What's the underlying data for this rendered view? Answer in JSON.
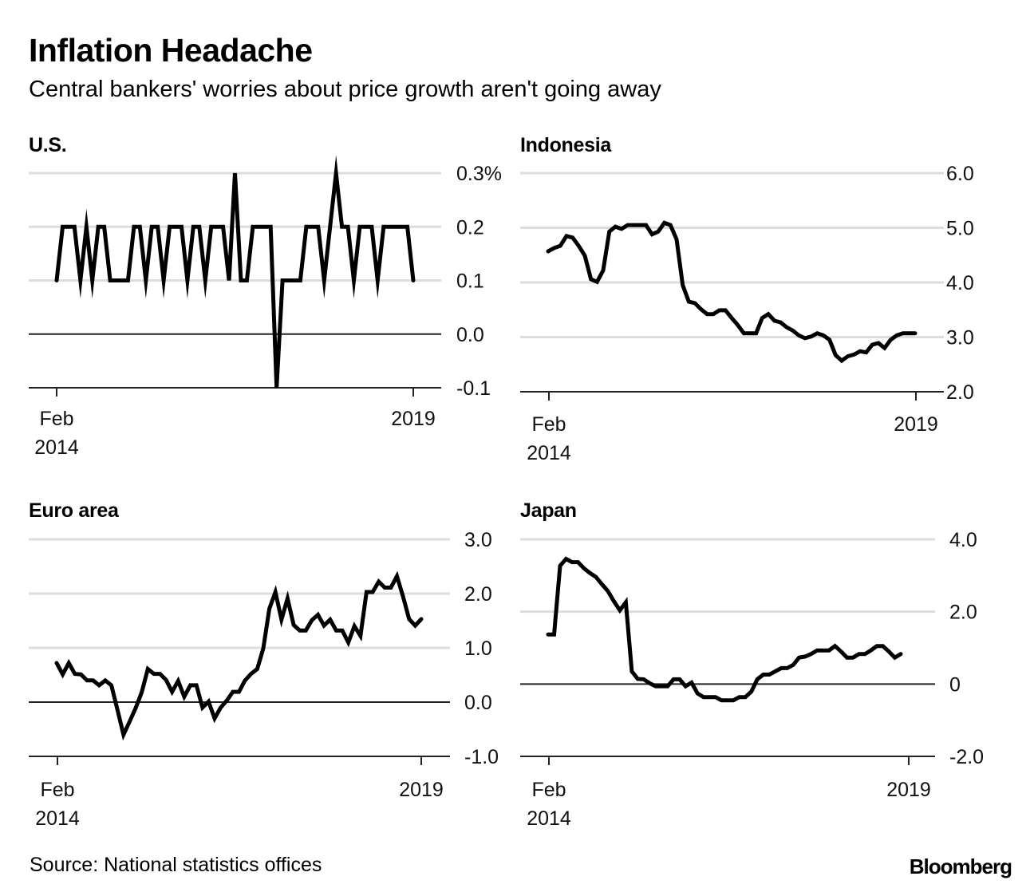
{
  "header": {
    "title": "Inflation Headache",
    "subtitle": "Central bankers' worries about price growth aren't going away"
  },
  "footer": {
    "source": "Source: National statistics offices",
    "brand": "Bloomberg"
  },
  "colors": {
    "line": "#000000",
    "gridline": "#dddddd",
    "zero_line": "#222222",
    "text": "#111111"
  },
  "chart_data": [
    {
      "id": "us",
      "type": "line",
      "title": "U.S.",
      "x_start": "Feb 2014",
      "x_end": "Feb 2019",
      "frequency": "monthly",
      "x_tick_labels": [
        [
          "Feb",
          "2014"
        ],
        [
          "2019"
        ]
      ],
      "y_ticks": [
        0.3,
        0.2,
        0.1,
        0.0,
        -0.1
      ],
      "y_tick_labels": [
        "0.3%",
        "0.2",
        "0.1",
        "0.0",
        "-0.1"
      ],
      "ylim": [
        -0.1,
        0.3
      ],
      "zero_line": 0.0,
      "grid": true,
      "values": [
        0.1,
        0.2,
        0.2,
        0.2,
        0.1,
        0.2,
        0.1,
        0.2,
        0.2,
        0.1,
        0.1,
        0.1,
        0.1,
        0.2,
        0.2,
        0.1,
        0.2,
        0.2,
        0.1,
        0.2,
        0.2,
        0.2,
        0.1,
        0.2,
        0.2,
        0.1,
        0.2,
        0.2,
        0.2,
        0.1,
        0.3,
        0.1,
        0.1,
        0.2,
        0.2,
        0.2,
        0.2,
        -0.1,
        0.1,
        0.1,
        0.1,
        0.1,
        0.2,
        0.2,
        0.2,
        0.1,
        0.2,
        0.3,
        0.2,
        0.2,
        0.1,
        0.2,
        0.2,
        0.2,
        0.1,
        0.2,
        0.2,
        0.2,
        0.2,
        0.2,
        0.1
      ]
    },
    {
      "id": "indonesia",
      "type": "line",
      "title": "Indonesia",
      "x_start": "Feb 2014",
      "x_end": "Feb 2019",
      "frequency": "monthly",
      "x_tick_labels": [
        [
          "Feb",
          "2014"
        ],
        [
          "2019"
        ]
      ],
      "y_ticks": [
        6.0,
        5.0,
        4.0,
        3.0,
        2.0
      ],
      "y_tick_labels": [
        "6.0",
        "5.0",
        "4.0",
        "3.0",
        "2.0"
      ],
      "ylim": [
        2.0,
        6.0
      ],
      "zero_line": null,
      "grid": true,
      "values": [
        4.57,
        4.63,
        4.67,
        4.85,
        4.82,
        4.67,
        4.49,
        4.06,
        4.01,
        4.22,
        4.93,
        5.02,
        4.98,
        5.05,
        5.05,
        5.05,
        5.05,
        4.88,
        4.93,
        5.09,
        5.05,
        4.79,
        3.95,
        3.65,
        3.62,
        3.51,
        3.42,
        3.42,
        3.49,
        3.49,
        3.35,
        3.22,
        3.07,
        3.07,
        3.07,
        3.35,
        3.42,
        3.3,
        3.27,
        3.18,
        3.12,
        3.03,
        2.98,
        3.01,
        3.07,
        3.03,
        2.95,
        2.67,
        2.57,
        2.65,
        2.68,
        2.74,
        2.72,
        2.86,
        2.89,
        2.8,
        2.95,
        3.03,
        3.07,
        3.07,
        3.07
      ]
    },
    {
      "id": "euro",
      "type": "line",
      "title": "Euro area",
      "x_start": "Feb 2014",
      "x_end": "Feb 2019",
      "frequency": "monthly",
      "x_tick_labels": [
        [
          "Feb",
          "2014"
        ],
        [
          "2019"
        ]
      ],
      "y_ticks": [
        3.0,
        2.0,
        1.0,
        0.0,
        -1.0
      ],
      "y_tick_labels": [
        "3.0",
        "2.0",
        "1.0",
        "0.0",
        "-1.0"
      ],
      "ylim": [
        -1.0,
        3.0
      ],
      "zero_line": 0.0,
      "grid": true,
      "values": [
        0.72,
        0.51,
        0.72,
        0.52,
        0.51,
        0.4,
        0.4,
        0.31,
        0.4,
        0.31,
        -0.14,
        -0.6,
        -0.36,
        -0.11,
        0.18,
        0.61,
        0.52,
        0.52,
        0.41,
        0.19,
        0.39,
        0.1,
        0.31,
        0.31,
        -0.1,
        0.01,
        -0.3,
        -0.1,
        0.03,
        0.19,
        0.19,
        0.4,
        0.52,
        0.61,
        0.99,
        1.72,
        2.03,
        1.52,
        1.91,
        1.42,
        1.32,
        1.32,
        1.51,
        1.61,
        1.41,
        1.52,
        1.32,
        1.32,
        1.1,
        1.4,
        1.22,
        2.03,
        2.03,
        2.22,
        2.11,
        2.11,
        2.32,
        1.95,
        1.53,
        1.41,
        1.53
      ]
    },
    {
      "id": "japan",
      "type": "line",
      "title": "Japan",
      "x_start": "Feb 2014",
      "x_end": "Jan 2019",
      "frequency": "monthly",
      "x_tick_labels": [
        [
          "Feb",
          "2014"
        ],
        [
          "2019"
        ]
      ],
      "y_ticks": [
        4.0,
        2.0,
        0.0,
        -2.0
      ],
      "y_tick_labels": [
        "4.0",
        "2.0",
        "0",
        "-2.0"
      ],
      "ylim": [
        -2.0,
        4.0
      ],
      "zero_line": 0.0,
      "grid": true,
      "values": [
        1.37,
        1.37,
        3.27,
        3.46,
        3.37,
        3.37,
        3.2,
        3.07,
        2.96,
        2.76,
        2.57,
        2.29,
        2.04,
        2.26,
        0.35,
        0.14,
        0.13,
        0.02,
        -0.06,
        -0.06,
        -0.06,
        0.13,
        0.13,
        -0.06,
        0.04,
        -0.26,
        -0.36,
        -0.36,
        -0.36,
        -0.45,
        -0.45,
        -0.45,
        -0.36,
        -0.36,
        -0.21,
        0.13,
        0.26,
        0.26,
        0.35,
        0.44,
        0.44,
        0.53,
        0.73,
        0.76,
        0.83,
        0.93,
        0.93,
        0.93,
        1.05,
        0.9,
        0.73,
        0.73,
        0.83,
        0.83,
        0.93,
        1.05,
        1.05,
        0.9,
        0.73,
        0.83
      ]
    }
  ]
}
